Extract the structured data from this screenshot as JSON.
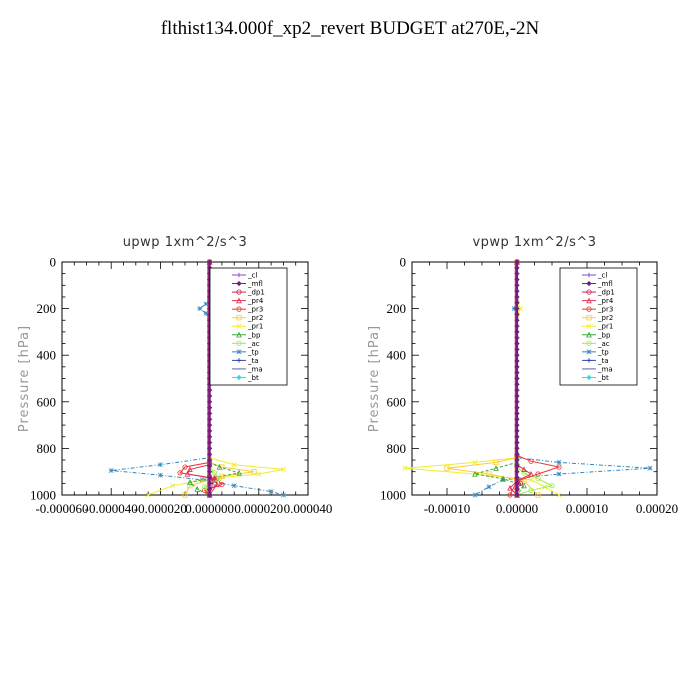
{
  "page": {
    "title": "flthist134.000f_xp2_revert  BUDGET at270E,-2N"
  },
  "legend_entries": [
    "_cl",
    "_mfl",
    "_dp1",
    "_pr4",
    "_pr3",
    "_pr2",
    "_pr1",
    "_bp",
    "_ac",
    "_tp",
    "_ta",
    "_ma",
    "_bt"
  ],
  "colors": {
    "_cl": "#8844cc",
    "_mfl": "#7a1a7a",
    "_dp1": "#cc2255",
    "_pr4": "#dd3355",
    "_pr3": "#ee3333",
    "_pr2": "#ffcc33",
    "_pr1": "#eeee33",
    "_bp": "#33aa33",
    "_ac": "#99ee44",
    "_tp": "#3388bb",
    "_ta": "#3344aa",
    "_ma": "#5566aa",
    "_bt": "#33dddd"
  },
  "chart_data": [
    {
      "type": "line",
      "title": "upwp   1xm^2/s^3",
      "ylabel": "Pressure [hPa]",
      "xlabel": "",
      "xlim": [
        -6e-05,
        4e-05
      ],
      "ylim": [
        1000,
        0
      ],
      "y_inverted": true,
      "xticks": [
        "-0.000060",
        "-0.000040",
        "-0.000020",
        "0.000000",
        "0.000020",
        "0.000040"
      ],
      "xtick_values": [
        -6e-05,
        -4e-05,
        -2e-05,
        0,
        2e-05,
        4e-05
      ],
      "yticks": [
        "0",
        "200",
        "400",
        "600",
        "800",
        "1000"
      ],
      "ytick_values": [
        0,
        200,
        400,
        600,
        800,
        1000
      ],
      "legend": "top-right",
      "series": [
        {
          "name": "_tp",
          "x": [
            0,
            0,
            -1.5e-06,
            -4e-06,
            -1.5e-06,
            0,
            0,
            -2e-05,
            -4e-05,
            -2e-05,
            -3e-06,
            1e-05,
            2.5e-05,
            3e-05
          ],
          "y": [
            0,
            150,
            180,
            200,
            220,
            260,
            840,
            870,
            895,
            915,
            935,
            960,
            985,
            1000
          ]
        },
        {
          "name": "_pr1",
          "x": [
            0,
            0,
            1.5e-06,
            3e-06,
            1.5e-06,
            0,
            0,
            1e-05,
            3e-05,
            2e-05,
            0,
            -1.5e-05,
            -2.5e-05
          ],
          "y": [
            0,
            160,
            180,
            200,
            220,
            260,
            840,
            870,
            890,
            910,
            930,
            960,
            1000
          ]
        },
        {
          "name": "_pr2",
          "x": [
            0,
            0,
            1e-06,
            0,
            0,
            5e-06,
            1.8e-05,
            5e-06,
            -8e-06,
            -1e-05
          ],
          "y": [
            0,
            170,
            200,
            240,
            860,
            880,
            900,
            920,
            960,
            1000
          ]
        },
        {
          "name": "_bp",
          "x": [
            0,
            0,
            4e-06,
            1.2e-05,
            2e-06,
            -8e-06,
            -5e-06,
            0
          ],
          "y": [
            0,
            860,
            880,
            905,
            925,
            945,
            975,
            1000
          ]
        },
        {
          "name": "_pr3",
          "x": [
            0,
            0,
            -1e-05,
            -1.2e-05,
            3e-06,
            5e-06,
            -2e-06,
            0
          ],
          "y": [
            0,
            860,
            880,
            905,
            930,
            955,
            980,
            1000
          ]
        },
        {
          "name": "_pr4",
          "x": [
            0,
            0,
            -8e-06,
            -9e-06,
            2e-06,
            3e-06,
            0
          ],
          "y": [
            0,
            870,
            890,
            910,
            930,
            955,
            1000
          ]
        },
        {
          "name": "_ac",
          "x": [
            0,
            0,
            2e-06,
            4e-06,
            -2e-06,
            0
          ],
          "y": [
            0,
            880,
            905,
            930,
            965,
            1000
          ]
        },
        {
          "name": "_dp1",
          "x": [
            0,
            0,
            1e-06,
            1e-06,
            0
          ],
          "y": [
            0,
            920,
            940,
            960,
            1000
          ]
        },
        {
          "name": "_ma",
          "x": [
            0,
            0,
            0
          ],
          "y": [
            0,
            500,
            1000
          ]
        },
        {
          "name": "_ta",
          "x": [
            0,
            0,
            0
          ],
          "y": [
            0,
            500,
            1000
          ]
        },
        {
          "name": "_cl",
          "x": [
            0,
            0,
            0
          ],
          "y": [
            0,
            500,
            1000
          ]
        },
        {
          "name": "_mfl",
          "x": [
            0,
            0,
            0
          ],
          "y": [
            0,
            500,
            1000
          ]
        },
        {
          "name": "_bt",
          "x": [
            0,
            0,
            0
          ],
          "y": [
            0,
            500,
            1000
          ]
        }
      ]
    },
    {
      "type": "line",
      "title": "vpwp   1xm^2/s^3",
      "ylabel": "Pressure [hPa]",
      "xlabel": "",
      "xlim": [
        -0.00015,
        0.0002
      ],
      "ylim": [
        1000,
        0
      ],
      "y_inverted": true,
      "xticks": [
        "-0.00010",
        "0.00000",
        "0.00010",
        "0.00020"
      ],
      "xtick_values": [
        -0.0001,
        0,
        0.0001,
        0.0002
      ],
      "yticks": [
        "0",
        "200",
        "400",
        "600",
        "800",
        "1000"
      ],
      "ytick_values": [
        0,
        200,
        400,
        600,
        800,
        1000
      ],
      "legend": "top-right",
      "series": [
        {
          "name": "_tp",
          "x": [
            0,
            0,
            -4e-06,
            0,
            0,
            0,
            6e-05,
            0.00019,
            6e-05,
            -2e-05,
            -4e-05,
            -6e-05
          ],
          "y": [
            0,
            170,
            200,
            230,
            820,
            840,
            860,
            885,
            910,
            935,
            965,
            1000
          ]
        },
        {
          "name": "_pr1",
          "x": [
            0,
            0,
            5e-06,
            0,
            0,
            0,
            -6e-05,
            -0.00016,
            -6e-05,
            2e-05,
            4e-05,
            6e-05
          ],
          "y": [
            0,
            170,
            200,
            230,
            820,
            840,
            860,
            885,
            910,
            935,
            965,
            1000
          ]
        },
        {
          "name": "_pr2",
          "x": [
            0,
            0,
            -3e-05,
            -0.0001,
            -4e-05,
            1e-05,
            3e-05
          ],
          "y": [
            0,
            840,
            860,
            885,
            910,
            940,
            1000
          ]
        },
        {
          "name": "_pr3",
          "x": [
            0,
            0,
            2e-05,
            6e-05,
            3e-05,
            0,
            -1e-05
          ],
          "y": [
            0,
            830,
            855,
            880,
            910,
            940,
            1000
          ]
        },
        {
          "name": "_bp",
          "x": [
            0,
            0,
            -3e-05,
            -6e-05,
            -2e-05,
            1e-05,
            0
          ],
          "y": [
            0,
            860,
            885,
            910,
            930,
            960,
            1000
          ]
        },
        {
          "name": "_ac",
          "x": [
            0,
            0,
            1e-05,
            3e-05,
            5e-05,
            2e-05,
            0
          ],
          "y": [
            0,
            880,
            905,
            930,
            960,
            980,
            1000
          ]
        },
        {
          "name": "_pr4",
          "x": [
            0,
            0,
            1e-05,
            2e-05,
            0,
            -1e-05,
            0
          ],
          "y": [
            0,
            870,
            890,
            910,
            940,
            970,
            1000
          ]
        },
        {
          "name": "_dp1",
          "x": [
            0,
            0,
            5e-06,
            0,
            0
          ],
          "y": [
            0,
            930,
            950,
            975,
            1000
          ]
        },
        {
          "name": "_ma",
          "x": [
            0,
            0,
            0
          ],
          "y": [
            0,
            500,
            1000
          ]
        },
        {
          "name": "_ta",
          "x": [
            0,
            0,
            0
          ],
          "y": [
            0,
            500,
            1000
          ]
        },
        {
          "name": "_cl",
          "x": [
            0,
            0,
            0
          ],
          "y": [
            0,
            500,
            1000
          ]
        },
        {
          "name": "_mfl",
          "x": [
            0,
            0,
            0
          ],
          "y": [
            0,
            500,
            1000
          ]
        },
        {
          "name": "_bt",
          "x": [
            0,
            0,
            0
          ],
          "y": [
            0,
            500,
            1000
          ]
        }
      ]
    }
  ]
}
